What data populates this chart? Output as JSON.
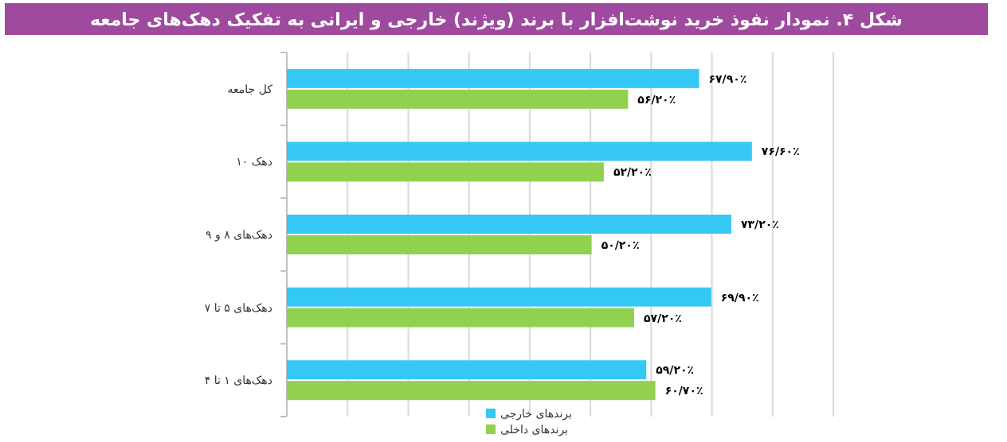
{
  "chart_data": {
    "type": "bar",
    "orientation": "horizontal",
    "title": "شکل ۴. نمودار نفوذ خرید نوشت‌افزار با برند (ویژند) خارجی و ایرانی به تفکیک دهک‌های جامعه",
    "categories": [
      "کل جامعه",
      "دهک ۱۰",
      "دهک‌های ۸ و ۹",
      "دهک‌های ۵ تا ۷",
      "دهک‌های ۱ تا ۴"
    ],
    "series": [
      {
        "name": "برندهای خارجی",
        "color": "#35c8f5",
        "values": [
          67.9,
          76.6,
          73.2,
          69.9,
          59.2
        ],
        "value_labels": [
          "۶۷/۹۰٪",
          "۷۶/۶۰٪",
          "۷۳/۲۰٪",
          "۶۹/۹۰٪",
          "۵۹/۲۰٪"
        ]
      },
      {
        "name": "برندهای داخلی",
        "color": "#92d050",
        "values": [
          56.2,
          52.2,
          50.2,
          57.2,
          60.7
        ],
        "value_labels": [
          "۵۶/۲۰٪",
          "۵۲/۲۰٪",
          "۵۰/۲۰٪",
          "۵۷/۲۰٪",
          "۶۰/۷۰٪"
        ]
      }
    ],
    "xlim": [
      0,
      90
    ],
    "xticks": [
      {
        "value": 0,
        "label": null
      },
      {
        "value": 10,
        "label": null
      },
      {
        "value": 20,
        "label": null
      },
      {
        "value": 30,
        "label": null
      },
      {
        "value": 40,
        "label": null
      },
      {
        "value": 50,
        "label": null
      },
      {
        "value": 60,
        "label": null
      },
      {
        "value": 70,
        "label": null
      },
      {
        "value": 80,
        "label": null
      },
      {
        "value": 90,
        "label": null
      }
    ],
    "grid": "x",
    "legend": "bottom",
    "tick_labels": "y"
  }
}
